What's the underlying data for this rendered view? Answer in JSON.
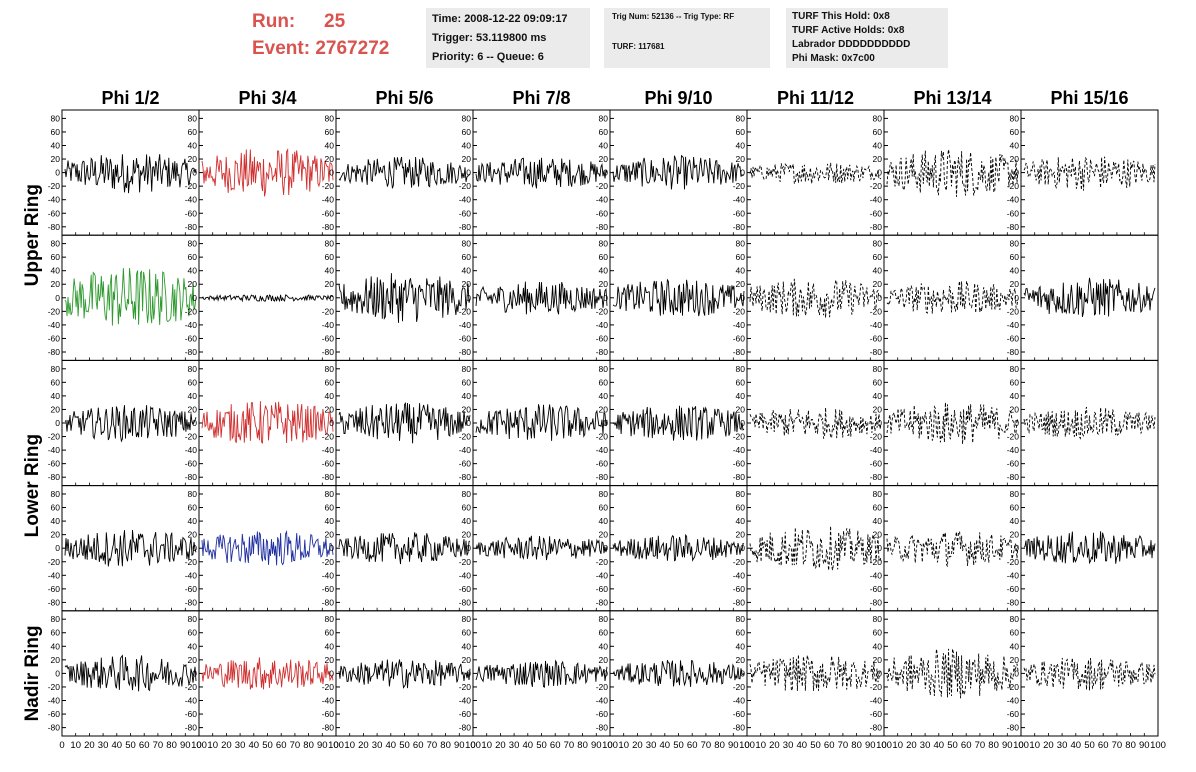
{
  "header": {
    "run_label": "Run:",
    "run_value": "25",
    "event_label": "Event:",
    "event_value": "2767272",
    "run_color": "#d9534f",
    "box1": [
      "Time: 2008-12-22 09:09:17",
      "Trigger: 53.119800 ms",
      "Priority: 6 -- Queue: 6"
    ],
    "box2": [
      "Trig Num: 52136 -- Trig Type: RF",
      "TURF: 117681"
    ],
    "box3": [
      "TURF This Hold: 0x8",
      "TURF Active Holds: 0x8",
      "Labrador DDDDDDDDDD",
      "Phi Mask: 0x7c00"
    ]
  },
  "chart_data": {
    "type": "line",
    "columns": [
      "Phi 1/2",
      "Phi 3/4",
      "Phi 5/6",
      "Phi 7/8",
      "Phi 9/10",
      "Phi 11/12",
      "Phi 13/14",
      "Phi 15/16"
    ],
    "rows": [
      {
        "group": "Upper Ring",
        "rows": 2
      },
      {
        "group": "Lower Ring",
        "rows": 2
      },
      {
        "group": "Nadir Ring",
        "rows": 1
      }
    ],
    "xlim": [
      0,
      100
    ],
    "ylim": [
      -85,
      85
    ],
    "x_ticks": [
      0,
      10,
      20,
      30,
      40,
      50,
      60,
      70,
      80,
      90,
      100
    ],
    "y_ticks": [
      80,
      60,
      40,
      20,
      0,
      -20,
      -40,
      -60,
      -80
    ],
    "panels": [
      [
        {
          "color": "#000000",
          "style": "solid",
          "amp": 18
        },
        {
          "color": "#d03030",
          "style": "solid",
          "amp": 22
        },
        {
          "color": "#000000",
          "style": "solid",
          "amp": 14
        },
        {
          "color": "#000000",
          "style": "solid",
          "amp": 14
        },
        {
          "color": "#000000",
          "style": "solid",
          "amp": 15
        },
        {
          "color": "#000000",
          "style": "dashed",
          "amp": 10
        },
        {
          "color": "#000000",
          "style": "dashed",
          "amp": 22
        },
        {
          "color": "#000000",
          "style": "dashed",
          "amp": 16
        }
      ],
      [
        {
          "color": "#2e9a2e",
          "style": "solid",
          "amp": 28
        },
        {
          "color": "#000000",
          "style": "solid",
          "amp": 3
        },
        {
          "color": "#000000",
          "style": "solid",
          "amp": 22
        },
        {
          "color": "#000000",
          "style": "solid",
          "amp": 15
        },
        {
          "color": "#000000",
          "style": "solid",
          "amp": 17
        },
        {
          "color": "#000000",
          "style": "dashed",
          "amp": 18
        },
        {
          "color": "#000000",
          "style": "dashed",
          "amp": 15
        },
        {
          "color": "#000000",
          "style": "solid",
          "amp": 18
        }
      ],
      [
        {
          "color": "#000000",
          "style": "solid",
          "amp": 16
        },
        {
          "color": "#d03030",
          "style": "solid",
          "amp": 20
        },
        {
          "color": "#000000",
          "style": "solid",
          "amp": 18
        },
        {
          "color": "#000000",
          "style": "solid",
          "amp": 17
        },
        {
          "color": "#000000",
          "style": "solid",
          "amp": 16
        },
        {
          "color": "#000000",
          "style": "dashed",
          "amp": 14
        },
        {
          "color": "#000000",
          "style": "dashed",
          "amp": 19
        },
        {
          "color": "#000000",
          "style": "dashed",
          "amp": 14
        }
      ],
      [
        {
          "color": "#000000",
          "style": "solid",
          "amp": 17
        },
        {
          "color": "#2030a0",
          "style": "solid",
          "amp": 16
        },
        {
          "color": "#000000",
          "style": "solid",
          "amp": 14
        },
        {
          "color": "#000000",
          "style": "solid",
          "amp": 11
        },
        {
          "color": "#000000",
          "style": "solid",
          "amp": 12
        },
        {
          "color": "#000000",
          "style": "dashed",
          "amp": 20
        },
        {
          "color": "#000000",
          "style": "dashed",
          "amp": 16
        },
        {
          "color": "#000000",
          "style": "solid",
          "amp": 15
        }
      ],
      [
        {
          "color": "#000000",
          "style": "solid",
          "amp": 16
        },
        {
          "color": "#d03030",
          "style": "solid",
          "amp": 15
        },
        {
          "color": "#000000",
          "style": "solid",
          "amp": 13
        },
        {
          "color": "#000000",
          "style": "solid",
          "amp": 12
        },
        {
          "color": "#000000",
          "style": "solid",
          "amp": 12
        },
        {
          "color": "#000000",
          "style": "dashed",
          "amp": 17
        },
        {
          "color": "#000000",
          "style": "dashed",
          "amp": 22
        },
        {
          "color": "#000000",
          "style": "dashed",
          "amp": 15
        }
      ]
    ]
  }
}
